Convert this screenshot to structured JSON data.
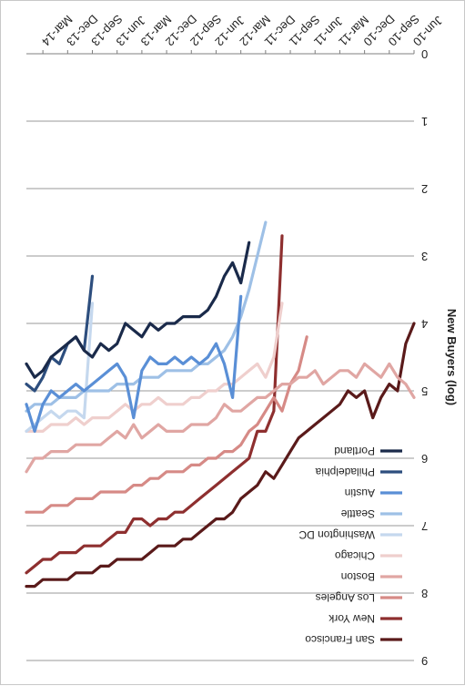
{
  "chart_data": {
    "type": "line",
    "orientation": "rotated-180",
    "title": "",
    "xlabel": "",
    "ylabel": "New Buyers (log)",
    "ylim": [
      0,
      9
    ],
    "yticks": [
      "0",
      "1",
      "2",
      "3",
      "4",
      "5",
      "6",
      "7",
      "8",
      "9"
    ],
    "xlim": [
      "2010-06",
      "2014-05"
    ],
    "xticks": [
      "Jun-10",
      "Sep-10",
      "Dec-10",
      "Mar-11",
      "Jun-11",
      "Sep-11",
      "Dec-11",
      "Mar-12",
      "Jun-12",
      "Sep-12",
      "Dec-12",
      "Mar-13",
      "Jun-13",
      "Sep-13",
      "Dec-13",
      "Mar-14"
    ],
    "grid": true,
    "legend_position": "inside-bottom-left",
    "series": [
      {
        "name": "San Francisco",
        "color": "#5a1a1a",
        "x": [
          "2010-06",
          "2010-07",
          "2010-08",
          "2010-09",
          "2010-10",
          "2010-11",
          "2010-12",
          "2011-01",
          "2011-02",
          "2011-03",
          "2011-04",
          "2011-05",
          "2011-06",
          "2011-07",
          "2011-08",
          "2011-09",
          "2011-10",
          "2011-11",
          "2011-12",
          "2012-01",
          "2012-02",
          "2012-03",
          "2012-04",
          "2012-05",
          "2012-06",
          "2012-07",
          "2012-08",
          "2012-09",
          "2012-10",
          "2012-11",
          "2012-12",
          "2013-01",
          "2013-02",
          "2013-03",
          "2013-04",
          "2013-05",
          "2013-06",
          "2013-07",
          "2013-08",
          "2013-09",
          "2013-10",
          "2013-11",
          "2013-12",
          "2014-01",
          "2014-02",
          "2014-03",
          "2014-04",
          "2014-05"
        ],
        "y": [
          4.0,
          4.3,
          5.0,
          4.9,
          5.1,
          5.4,
          5.0,
          5.1,
          5.0,
          5.2,
          5.3,
          5.4,
          5.5,
          5.6,
          5.7,
          5.9,
          6.1,
          6.3,
          6.2,
          6.4,
          6.5,
          6.6,
          6.8,
          6.9,
          6.9,
          7.0,
          7.1,
          7.2,
          7.2,
          7.3,
          7.3,
          7.3,
          7.4,
          7.5,
          7.5,
          7.5,
          7.5,
          7.6,
          7.6,
          7.7,
          7.7,
          7.7,
          7.8,
          7.8,
          7.8,
          7.8,
          7.9,
          7.9
        ]
      },
      {
        "name": "New York",
        "color": "#8e2f2f",
        "x": [
          "2011-10",
          "2011-11",
          "2011-12",
          "2012-01",
          "2012-02",
          "2012-03",
          "2012-04",
          "2012-05",
          "2012-06",
          "2012-07",
          "2012-08",
          "2012-09",
          "2012-10",
          "2012-11",
          "2012-12",
          "2013-01",
          "2013-02",
          "2013-03",
          "2013-04",
          "2013-05",
          "2013-06",
          "2013-07",
          "2013-08",
          "2013-09",
          "2013-10",
          "2013-11",
          "2013-12",
          "2014-01",
          "2014-02",
          "2014-03",
          "2014-04",
          "2014-05"
        ],
        "y": [
          2.7,
          5.3,
          5.6,
          5.6,
          6.0,
          6.1,
          6.2,
          6.3,
          6.4,
          6.5,
          6.6,
          6.7,
          6.8,
          6.8,
          6.9,
          6.9,
          7.0,
          6.9,
          6.9,
          7.1,
          7.1,
          7.2,
          7.3,
          7.3,
          7.3,
          7.4,
          7.4,
          7.4,
          7.5,
          7.5,
          7.6,
          7.7
        ]
      },
      {
        "name": "Los Angeles",
        "color": "#d68a86",
        "x": [
          "2011-07",
          "2011-08",
          "2011-09",
          "2011-10",
          "2011-11",
          "2011-12",
          "2012-01",
          "2012-02",
          "2012-03",
          "2012-04",
          "2012-05",
          "2012-06",
          "2012-07",
          "2012-08",
          "2012-09",
          "2012-10",
          "2012-11",
          "2012-12",
          "2013-01",
          "2013-02",
          "2013-03",
          "2013-04",
          "2013-05",
          "2013-06",
          "2013-07",
          "2013-08",
          "2013-09",
          "2013-10",
          "2013-11",
          "2013-12",
          "2014-01",
          "2014-02",
          "2014-03",
          "2014-04",
          "2014-05"
        ],
        "y": [
          4.2,
          4.7,
          4.9,
          5.3,
          5.1,
          5.3,
          5.5,
          5.6,
          5.8,
          5.9,
          5.9,
          6.0,
          6.0,
          6.1,
          6.1,
          6.2,
          6.2,
          6.2,
          6.3,
          6.3,
          6.4,
          6.4,
          6.5,
          6.5,
          6.5,
          6.5,
          6.6,
          6.6,
          6.6,
          6.7,
          6.7,
          6.7,
          6.8,
          6.8,
          6.8
        ]
      },
      {
        "name": "Boston",
        "color": "#e0a6a3",
        "x": [
          "2010-06",
          "2010-07",
          "2010-08",
          "2010-09",
          "2010-10",
          "2010-11",
          "2010-12",
          "2011-01",
          "2011-02",
          "2011-03",
          "2011-04",
          "2011-05",
          "2011-06",
          "2011-07",
          "2011-08",
          "2011-09",
          "2011-10",
          "2011-11",
          "2011-12",
          "2012-01",
          "2012-02",
          "2012-03",
          "2012-04",
          "2012-05",
          "2012-06",
          "2012-07",
          "2012-08",
          "2012-09",
          "2012-10",
          "2012-11",
          "2012-12",
          "2013-01",
          "2013-02",
          "2013-03",
          "2013-04",
          "2013-05",
          "2013-06",
          "2013-07",
          "2013-08",
          "2013-09",
          "2013-10",
          "2013-11",
          "2013-12",
          "2014-01",
          "2014-02",
          "2014-03",
          "2014-04",
          "2014-05"
        ],
        "y": [
          5.1,
          4.9,
          4.8,
          4.6,
          4.8,
          4.7,
          4.6,
          4.8,
          4.7,
          4.7,
          4.8,
          4.9,
          4.7,
          4.8,
          4.8,
          4.9,
          4.9,
          5.0,
          5.1,
          5.1,
          5.2,
          5.3,
          5.3,
          5.2,
          5.4,
          5.5,
          5.5,
          5.5,
          5.6,
          5.6,
          5.6,
          5.5,
          5.6,
          5.7,
          5.5,
          5.7,
          5.6,
          5.7,
          5.8,
          5.8,
          5.8,
          5.8,
          5.9,
          5.9,
          5.9,
          6.0,
          6.0,
          6.2
        ]
      },
      {
        "name": "Chicago",
        "color": "#efcfcd",
        "x": [
          "2011-10",
          "2011-11",
          "2011-12",
          "2012-01",
          "2012-02",
          "2012-03",
          "2012-04",
          "2012-05",
          "2012-06",
          "2012-07",
          "2012-08",
          "2012-09",
          "2012-10",
          "2012-11",
          "2012-12",
          "2013-01",
          "2013-02",
          "2013-03",
          "2013-04",
          "2013-05",
          "2013-06",
          "2013-07",
          "2013-08",
          "2013-09",
          "2013-10",
          "2013-11",
          "2013-12",
          "2014-01",
          "2014-02",
          "2014-03",
          "2014-04",
          "2014-05"
        ],
        "y": [
          3.7,
          4.5,
          4.8,
          4.6,
          4.7,
          4.8,
          4.9,
          4.9,
          5.0,
          5.0,
          5.1,
          5.1,
          5.2,
          5.2,
          5.2,
          5.1,
          5.2,
          5.2,
          5.3,
          5.2,
          5.3,
          5.4,
          5.4,
          5.4,
          5.5,
          5.4,
          5.5,
          5.5,
          5.5,
          5.6,
          5.6,
          5.6
        ]
      },
      {
        "name": "Washington DC",
        "color": "#c5d8ee",
        "x": [
          "2013-09",
          "2013-10",
          "2013-11",
          "2013-12",
          "2014-01",
          "2014-02",
          "2014-03",
          "2014-04",
          "2014-05"
        ],
        "y": [
          3.7,
          5.4,
          5.3,
          5.3,
          5.4,
          5.3,
          5.4,
          5.5,
          5.6
        ]
      },
      {
        "name": "Seattle",
        "color": "#9ec0e6",
        "x": [
          "2011-12",
          "2012-01",
          "2012-02",
          "2012-03",
          "2012-04",
          "2012-05",
          "2012-06",
          "2012-07",
          "2012-08",
          "2012-09",
          "2012-10",
          "2012-11",
          "2012-12",
          "2013-01",
          "2013-02",
          "2013-03",
          "2013-04",
          "2013-05",
          "2013-06",
          "2013-07",
          "2013-08",
          "2013-09",
          "2013-10",
          "2013-11",
          "2013-12",
          "2014-01",
          "2014-02",
          "2014-03",
          "2014-04",
          "2014-05"
        ],
        "y": [
          2.5,
          3.0,
          3.5,
          3.9,
          4.2,
          4.4,
          4.5,
          4.6,
          4.6,
          4.7,
          4.7,
          4.7,
          4.7,
          4.8,
          4.8,
          4.8,
          4.9,
          4.9,
          4.9,
          5.0,
          5.0,
          5.0,
          5.0,
          5.1,
          5.1,
          5.1,
          5.2,
          5.2,
          5.2,
          5.3
        ]
      },
      {
        "name": "Austin",
        "color": "#5a8fd6",
        "x": [
          "2012-03",
          "2012-04",
          "2012-05",
          "2012-06",
          "2012-07",
          "2012-08",
          "2012-09",
          "2012-10",
          "2012-11",
          "2012-12",
          "2013-01",
          "2013-02",
          "2013-03",
          "2013-04",
          "2013-05",
          "2013-06",
          "2013-07",
          "2013-08",
          "2013-09",
          "2013-10",
          "2013-11",
          "2013-12",
          "2014-01",
          "2014-02",
          "2014-03",
          "2014-04",
          "2014-05"
        ],
        "y": [
          3.6,
          5.1,
          4.6,
          4.3,
          4.5,
          4.6,
          4.5,
          4.6,
          4.5,
          4.6,
          4.6,
          4.5,
          4.7,
          5.4,
          4.8,
          4.6,
          4.7,
          4.8,
          4.9,
          5.0,
          4.9,
          5.0,
          5.1,
          5.0,
          5.2,
          5.6,
          5.2
        ]
      },
      {
        "name": "Philadelphia",
        "color": "#2d4e7e",
        "x": [
          "2013-09",
          "2013-10",
          "2013-11",
          "2013-12",
          "2014-01",
          "2014-02",
          "2014-03",
          "2014-04",
          "2014-05"
        ],
        "y": [
          3.3,
          4.4,
          4.2,
          4.3,
          4.6,
          4.5,
          4.8,
          5.0,
          4.9
        ]
      },
      {
        "name": "Portland",
        "color": "#1a2a4a",
        "x": [
          "2012-02",
          "2012-03",
          "2012-04",
          "2012-05",
          "2012-06",
          "2012-07",
          "2012-08",
          "2012-09",
          "2012-10",
          "2012-11",
          "2012-12",
          "2013-01",
          "2013-02",
          "2013-03",
          "2013-04",
          "2013-05",
          "2013-06",
          "2013-07",
          "2013-08",
          "2013-09",
          "2013-10",
          "2013-11",
          "2013-12",
          "2014-01",
          "2014-02",
          "2014-03",
          "2014-04",
          "2014-05"
        ],
        "y": [
          2.8,
          3.4,
          3.1,
          3.3,
          3.6,
          3.8,
          3.9,
          3.9,
          3.9,
          4.0,
          4.0,
          4.1,
          4.0,
          4.2,
          4.1,
          4.0,
          4.3,
          4.4,
          4.3,
          4.5,
          4.4,
          4.2,
          4.3,
          4.4,
          4.5,
          4.7,
          4.8,
          4.6
        ]
      }
    ]
  }
}
